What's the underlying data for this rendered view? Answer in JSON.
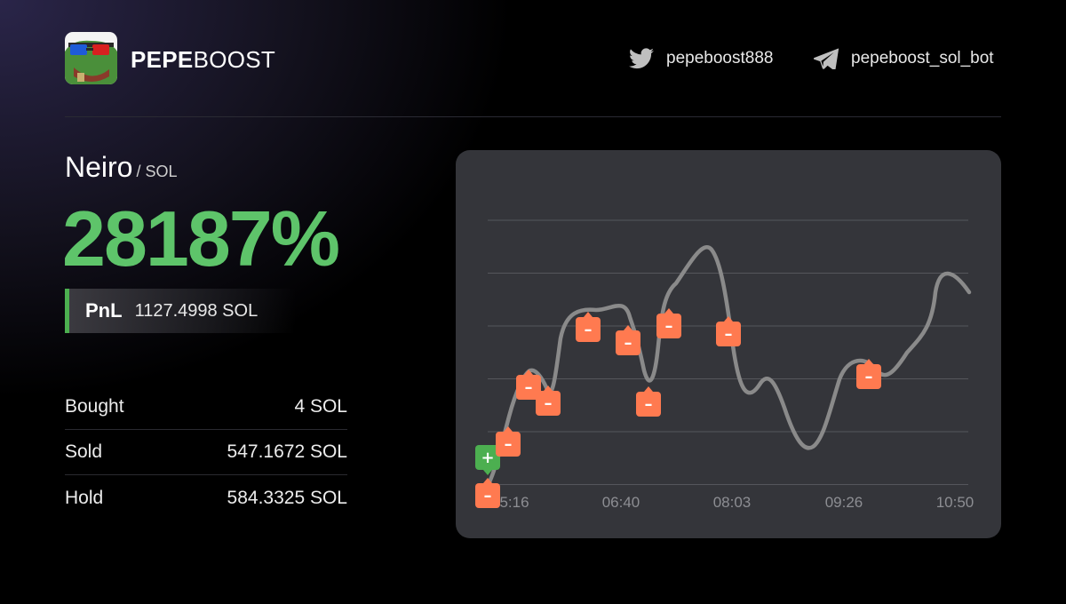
{
  "brand": {
    "name_bold": "PEPE",
    "name_light": "BOOST"
  },
  "social": {
    "twitter": {
      "icon": "twitter-icon",
      "handle": "pepeboost888"
    },
    "telegram": {
      "icon": "telegram-icon",
      "handle": "pepeboost_sol_bot"
    }
  },
  "token": {
    "name": "Neiro",
    "quote": "/ SOL"
  },
  "pnl_percent": "28187%",
  "pnl": {
    "label": "PnL",
    "value": "1127.4998 SOL"
  },
  "stats": [
    {
      "label": "Bought",
      "value": "4 SOL"
    },
    {
      "label": "Sold",
      "value": "547.1672 SOL"
    },
    {
      "label": "Hold",
      "value": "584.3325 SOL"
    }
  ],
  "colors": {
    "profit_green": "#5ec46a",
    "buy_marker": "#4caf50",
    "sell_marker": "#ff7a50",
    "price_line": "#8a8a8a",
    "card_bg": "#34353a"
  },
  "chart_data": {
    "type": "line",
    "x_ticks": [
      "5:16",
      "06:40",
      "08:03",
      "09:26",
      "10:50"
    ],
    "x_label_note": "first tick label partially hidden by a marker",
    "grid": true,
    "gridlines": 6,
    "markers": {
      "buy": [
        {
          "symbol": "+"
        }
      ],
      "sell": [
        {
          "symbol": "-"
        },
        {
          "symbol": "-"
        },
        {
          "symbol": "-"
        },
        {
          "symbol": "-"
        },
        {
          "symbol": "-"
        },
        {
          "symbol": "-"
        },
        {
          "symbol": "-"
        },
        {
          "symbol": "-"
        },
        {
          "symbol": "-"
        },
        {
          "symbol": "-"
        }
      ]
    }
  }
}
